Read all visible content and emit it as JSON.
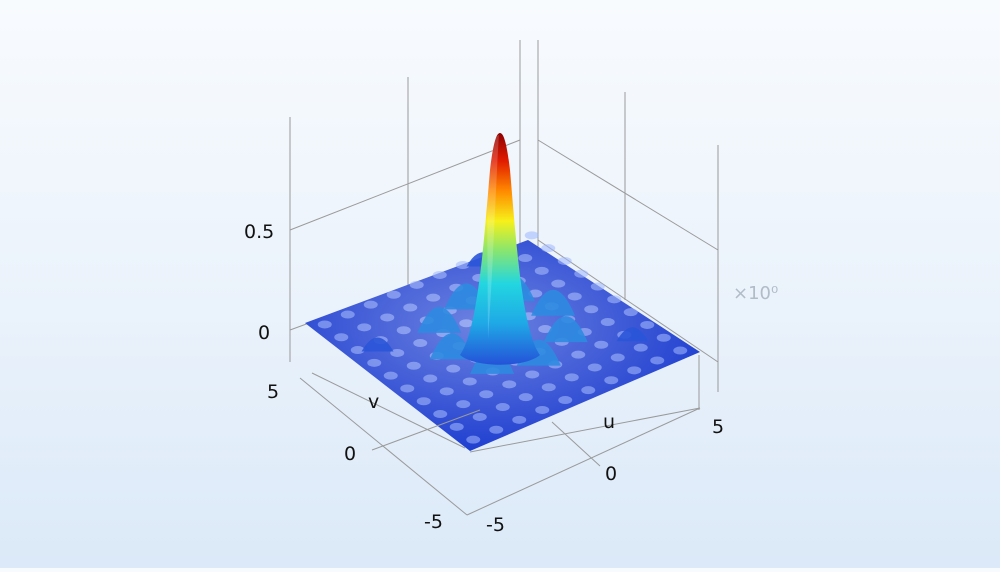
{
  "chart_data": {
    "type": "surface",
    "function": "sinc-like radial peak centered at (0,0)",
    "x": {
      "label": "u",
      "range": [
        -5,
        5
      ],
      "ticks": [
        "-5",
        "0",
        "5"
      ]
    },
    "y": {
      "label": "v",
      "range": [
        -5,
        5
      ],
      "ticks": [
        "-5",
        "0",
        "5"
      ]
    },
    "z": {
      "range": [
        -0.1,
        0.9
      ],
      "ticks": [
        "0",
        "0.5"
      ],
      "peak": 0.9
    },
    "scale_annotation": "×10⁰",
    "colormap": "rainbow",
    "grid": true,
    "colors": {
      "low": "#1f3fd0",
      "mid": "#22d6e0",
      "high": "#a80000",
      "axis": "#8a8a8a",
      "text": "#000000"
    }
  }
}
